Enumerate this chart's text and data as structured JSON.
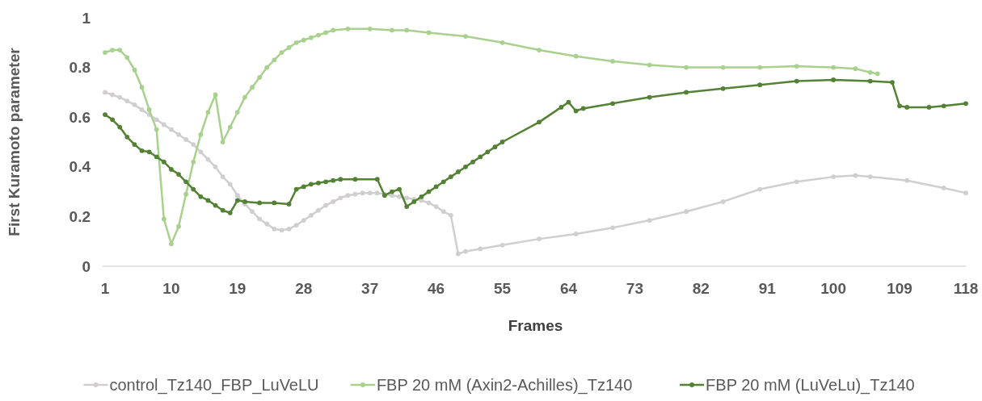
{
  "chart_data": {
    "type": "line",
    "xlabel": "Frames",
    "ylabel": "First Kuramoto parameter",
    "xlim": [
      1,
      118
    ],
    "xticks": [
      1,
      10,
      19,
      28,
      37,
      46,
      55,
      64,
      73,
      82,
      91,
      100,
      109,
      118
    ],
    "ylim": [
      0,
      1
    ],
    "yticks": [
      0,
      0.2,
      0.4,
      0.6,
      0.8,
      1
    ],
    "grid": false,
    "legend": "bottom",
    "marker": "circle",
    "line_style": "solid",
    "series": [
      {
        "name": "control_Tz140_FBP_LuVeLU",
        "color": "#d0cece",
        "x": [
          1,
          2,
          3,
          4,
          5,
          6,
          7,
          8,
          9,
          10,
          11,
          12,
          13,
          14,
          15,
          16,
          17,
          18,
          19,
          20,
          21,
          22,
          23,
          24,
          25,
          26,
          27,
          28,
          29,
          30,
          31,
          32,
          33,
          34,
          35,
          36,
          37,
          38,
          39,
          40,
          41,
          42,
          43,
          44,
          45,
          46,
          47,
          48,
          49,
          50,
          52,
          55,
          60,
          65,
          70,
          75,
          80,
          85,
          90,
          95,
          100,
          103,
          105,
          110,
          115,
          118
        ],
        "values": [
          0.7,
          0.69,
          0.68,
          0.665,
          0.65,
          0.63,
          0.61,
          0.59,
          0.57,
          0.55,
          0.53,
          0.51,
          0.49,
          0.46,
          0.43,
          0.4,
          0.36,
          0.33,
          0.285,
          0.25,
          0.22,
          0.19,
          0.17,
          0.15,
          0.145,
          0.15,
          0.165,
          0.185,
          0.205,
          0.225,
          0.245,
          0.26,
          0.275,
          0.285,
          0.29,
          0.295,
          0.295,
          0.295,
          0.29,
          0.285,
          0.28,
          0.275,
          0.27,
          0.265,
          0.255,
          0.24,
          0.22,
          0.205,
          0.05,
          0.06,
          0.07,
          0.085,
          0.11,
          0.13,
          0.155,
          0.185,
          0.22,
          0.26,
          0.31,
          0.34,
          0.36,
          0.365,
          0.36,
          0.345,
          0.315,
          0.295
        ]
      },
      {
        "name": "FBP 20 mM (Axin2-Achilles)_Tz140",
        "color": "#a9d18e",
        "x": [
          1,
          2,
          3,
          4,
          5,
          6,
          7,
          8,
          9,
          10,
          11,
          12,
          13,
          14,
          15,
          16,
          17,
          18,
          19,
          20,
          21,
          22,
          23,
          24,
          25,
          26,
          27,
          28,
          29,
          30,
          31,
          32,
          34,
          37,
          40,
          42,
          45,
          50,
          55,
          60,
          65,
          70,
          75,
          80,
          85,
          90,
          95,
          100,
          103,
          105,
          106
        ],
        "values": [
          0.86,
          0.87,
          0.87,
          0.84,
          0.79,
          0.72,
          0.63,
          0.55,
          0.19,
          0.09,
          0.16,
          0.29,
          0.42,
          0.53,
          0.62,
          0.69,
          0.5,
          0.56,
          0.62,
          0.68,
          0.72,
          0.76,
          0.8,
          0.83,
          0.86,
          0.88,
          0.9,
          0.91,
          0.92,
          0.93,
          0.94,
          0.95,
          0.955,
          0.955,
          0.95,
          0.95,
          0.94,
          0.925,
          0.9,
          0.87,
          0.845,
          0.825,
          0.81,
          0.8,
          0.8,
          0.8,
          0.805,
          0.8,
          0.795,
          0.78,
          0.775
        ]
      },
      {
        "name": "FBP 20 mM (LuVeLu)_Tz140",
        "color": "#548235",
        "x": [
          1,
          2,
          3,
          4,
          5,
          6,
          7,
          8,
          9,
          10,
          11,
          12,
          13,
          14,
          15,
          16,
          17,
          18,
          19,
          20,
          22,
          24,
          26,
          27,
          28,
          29,
          30,
          31,
          32,
          33,
          35,
          38,
          39,
          40,
          41,
          42,
          43,
          44,
          45,
          46,
          47,
          48,
          49,
          50,
          51,
          52,
          53,
          54,
          55,
          60,
          63,
          64,
          65,
          66,
          70,
          75,
          80,
          85,
          90,
          95,
          100,
          105,
          108,
          109,
          110,
          113,
          115,
          118
        ],
        "values": [
          0.61,
          0.59,
          0.56,
          0.52,
          0.49,
          0.465,
          0.46,
          0.44,
          0.42,
          0.39,
          0.37,
          0.34,
          0.31,
          0.28,
          0.265,
          0.245,
          0.225,
          0.215,
          0.265,
          0.26,
          0.255,
          0.255,
          0.25,
          0.31,
          0.32,
          0.33,
          0.335,
          0.34,
          0.345,
          0.35,
          0.35,
          0.35,
          0.285,
          0.3,
          0.31,
          0.24,
          0.26,
          0.28,
          0.3,
          0.32,
          0.34,
          0.36,
          0.38,
          0.4,
          0.42,
          0.44,
          0.46,
          0.48,
          0.5,
          0.58,
          0.64,
          0.66,
          0.625,
          0.635,
          0.655,
          0.68,
          0.7,
          0.715,
          0.73,
          0.745,
          0.75,
          0.745,
          0.74,
          0.645,
          0.64,
          0.64,
          0.645,
          0.655
        ]
      }
    ]
  }
}
